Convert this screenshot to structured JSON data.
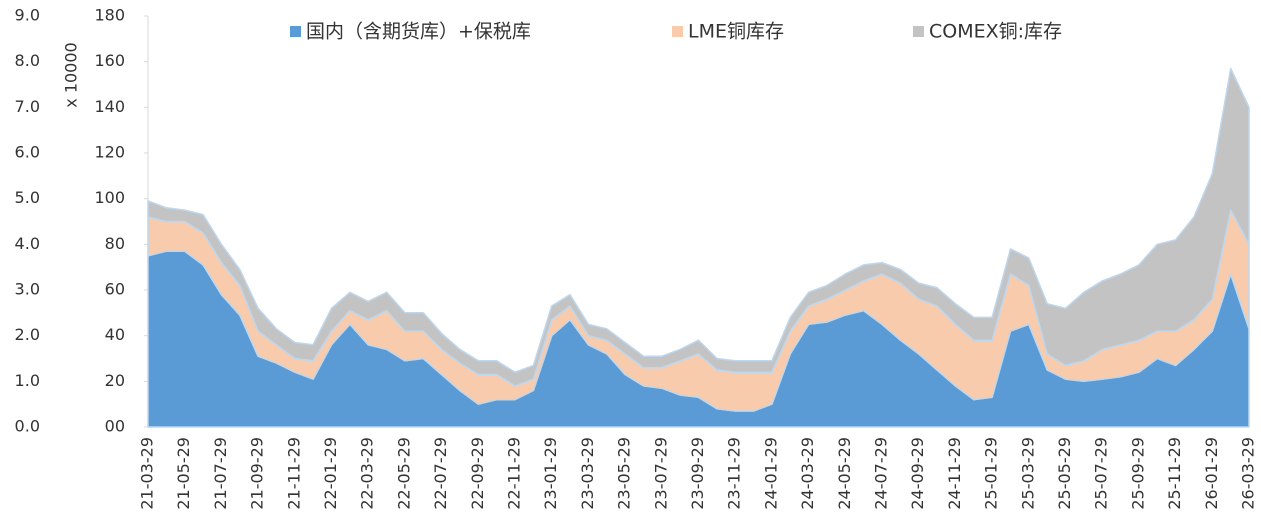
{
  "chart_data": {
    "type": "stacked_area",
    "y_label": "x 10000",
    "legend": "top",
    "categories": [
      "21-03-29",
      null,
      "21-05-29",
      null,
      "21-07-29",
      null,
      "21-09-29",
      null,
      "21-11-29",
      null,
      "22-01-29",
      null,
      "22-03-29",
      null,
      "22-05-29",
      null,
      "22-07-29",
      null,
      "22-09-29",
      null,
      "22-11-29",
      null,
      "23-01-29",
      null,
      "23-03-29",
      null,
      "23-05-29",
      null,
      "23-07-29",
      null,
      "23-09-29",
      null,
      "23-11-29",
      null,
      "24-01-29",
      null,
      "24-03-29",
      null,
      "24-05-29",
      null,
      "24-07-29",
      null,
      "24-09-29",
      null,
      "24-11-29",
      null,
      "25-01-29",
      null,
      "25-03-29",
      null,
      "25-05-29",
      null,
      "25-07-29",
      null,
      "25-09-29",
      null,
      "25-11-29",
      null,
      "26-01-29",
      null,
      "26-03-29"
    ],
    "series": [
      {
        "name": "国内（含期货库）+保税库",
        "color": "#5b9bd5",
        "values": [
          75,
          77,
          77,
          71,
          58,
          49,
          31,
          28,
          24,
          21,
          36,
          45,
          36,
          34,
          29,
          30,
          23,
          16,
          10,
          12,
          12,
          16,
          40,
          47,
          36,
          32,
          23,
          18,
          17,
          14,
          13,
          8,
          7,
          7,
          10,
          32,
          45,
          46,
          49,
          51,
          45,
          38,
          32,
          25,
          18,
          12,
          13,
          42,
          45,
          25,
          21,
          20,
          21,
          22,
          24,
          30,
          27,
          34,
          42,
          67,
          43
        ]
      },
      {
        "name": "LME铜库存",
        "color": "#f8cbad",
        "values": [
          17,
          13,
          13,
          14,
          14,
          13,
          11,
          8,
          6,
          8,
          6,
          6,
          11,
          17,
          13,
          12,
          11,
          12,
          13,
          11,
          6,
          5,
          7,
          6,
          4,
          6,
          9,
          8,
          9,
          15,
          19,
          17,
          17,
          17,
          14,
          10,
          8,
          10,
          11,
          13,
          22,
          25,
          24,
          28,
          27,
          26,
          25,
          25,
          17,
          7,
          6,
          9,
          13,
          14,
          14,
          12,
          15,
          13,
          14,
          28,
          37
        ]
      },
      {
        "name": "COMEX铜:库存",
        "color": "#c3c3c3",
        "values": [
          7,
          6,
          5,
          8,
          8,
          7,
          10,
          7,
          7,
          7,
          10,
          8,
          8,
          8,
          8,
          8,
          7,
          6,
          6,
          6,
          6,
          6,
          6,
          5,
          5,
          5,
          5,
          5,
          5,
          5,
          6,
          5,
          5,
          5,
          5,
          6,
          6,
          6,
          7,
          7,
          5,
          6,
          7,
          8,
          9,
          10,
          10,
          11,
          12,
          22,
          25,
          30,
          30,
          31,
          33,
          38,
          40,
          45,
          55,
          62,
          60
        ]
      }
    ],
    "ylim": [
      0,
      180
    ],
    "yticks": [
      {
        "value": 0,
        "label": "00"
      },
      20,
      40,
      60,
      80,
      100,
      120,
      140,
      160,
      180
    ],
    "y2lim": [
      0,
      9
    ],
    "y2ticks": [
      {
        "value": 0,
        "label": "0.0"
      },
      {
        "value": 1,
        "label": "1.0"
      },
      {
        "value": 2,
        "label": "2.0"
      },
      {
        "value": 3,
        "label": "3.0"
      },
      {
        "value": 4,
        "label": "4.0"
      },
      {
        "value": 5,
        "label": "5.0"
      },
      {
        "value": 6,
        "label": "6.0"
      },
      {
        "value": 7,
        "label": "7.0"
      },
      {
        "value": 8,
        "label": "8.0"
      },
      {
        "value": 9,
        "label": "9.0"
      }
    ]
  }
}
